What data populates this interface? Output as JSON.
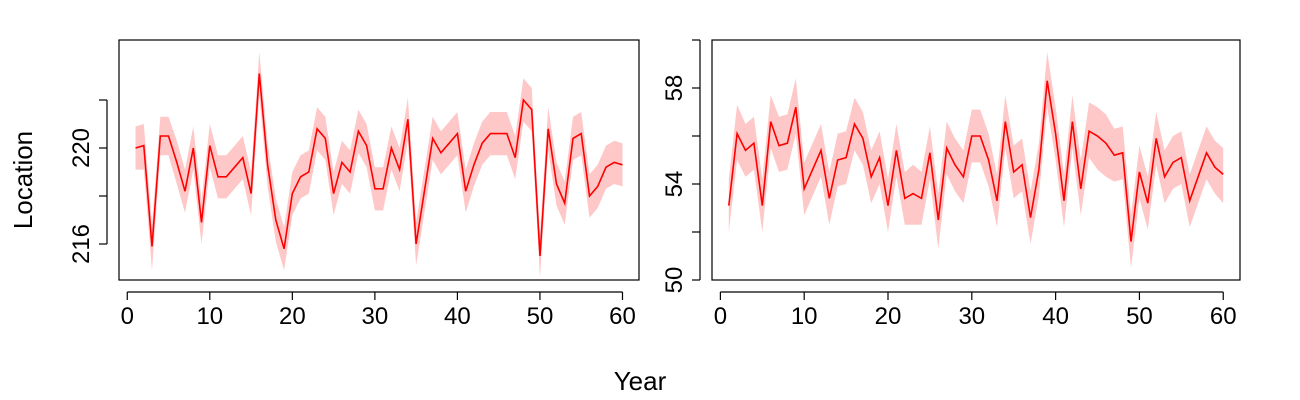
{
  "figure": {
    "ylabel": "Location",
    "xlabel": "Year",
    "colors": {
      "line": "#FF0000",
      "band": "#FFC8C8",
      "axis": "#000000"
    }
  },
  "chart_data": [
    {
      "type": "line",
      "title": "",
      "xlabel": "Year",
      "ylabel": "Location",
      "xlim": [
        -1,
        62
      ],
      "ylim": [
        214.5,
        224.5
      ],
      "x_ticks": [
        0,
        10,
        20,
        30,
        40,
        50,
        60
      ],
      "y_ticks_labeled": [
        216,
        220
      ],
      "y_ticks_minor": [
        218,
        222
      ],
      "grid": false,
      "legend": "none",
      "series": [
        {
          "x": [
            1,
            2,
            3,
            4,
            5,
            6,
            7,
            8,
            9,
            10,
            11,
            12,
            13,
            14,
            15,
            16,
            17,
            18,
            19,
            20,
            21,
            22,
            23,
            24,
            25,
            26,
            27,
            28,
            29,
            30,
            31,
            32,
            33,
            34,
            35,
            36,
            37,
            38,
            39,
            40,
            41,
            42,
            43,
            44,
            45,
            46,
            47,
            48,
            49,
            50,
            51,
            52,
            53,
            54,
            55,
            56,
            57,
            58,
            59,
            60
          ],
          "y": [
            220.0,
            220.1,
            215.9,
            220.5,
            220.5,
            219.4,
            218.2,
            220.0,
            216.9,
            220.1,
            218.8,
            218.8,
            219.2,
            219.6,
            218.1,
            223.1,
            219.3,
            217.0,
            215.8,
            218.1,
            218.8,
            219.0,
            220.8,
            220.4,
            218.1,
            219.4,
            219.0,
            220.7,
            220.1,
            218.3,
            218.3,
            220.0,
            219.1,
            221.2,
            216.0,
            218.2,
            220.4,
            219.8,
            220.2,
            220.6,
            218.2,
            219.3,
            220.2,
            220.6,
            220.6,
            220.6,
            219.6,
            222.0,
            221.6,
            215.5,
            220.8,
            218.5,
            217.7,
            220.4,
            220.6,
            218.0,
            218.4,
            219.2,
            219.4,
            219.3
          ],
          "lower": [
            219.1,
            219.1,
            214.9,
            219.7,
            219.7,
            218.5,
            217.3,
            219.1,
            216.0,
            219.2,
            217.9,
            217.9,
            218.3,
            218.7,
            217.2,
            222.2,
            218.4,
            216.1,
            214.9,
            217.2,
            217.9,
            218.1,
            219.9,
            219.5,
            217.2,
            218.5,
            218.1,
            219.8,
            219.2,
            217.4,
            217.4,
            219.1,
            218.2,
            220.3,
            215.1,
            217.3,
            219.5,
            218.9,
            219.3,
            219.7,
            217.3,
            218.4,
            219.3,
            219.7,
            219.7,
            219.7,
            218.7,
            221.1,
            220.7,
            214.6,
            219.9,
            217.6,
            216.8,
            219.5,
            219.7,
            217.1,
            217.5,
            218.3,
            218.5,
            218.4
          ],
          "upper": [
            220.9,
            221.0,
            216.8,
            221.3,
            221.3,
            220.3,
            219.1,
            220.9,
            217.8,
            221.0,
            219.7,
            219.7,
            220.1,
            220.5,
            219.0,
            224.0,
            220.2,
            217.9,
            216.7,
            219.0,
            219.7,
            219.9,
            221.7,
            221.3,
            219.0,
            220.3,
            219.9,
            221.6,
            221.0,
            219.2,
            219.2,
            220.9,
            220.0,
            222.1,
            216.9,
            219.1,
            221.3,
            220.7,
            221.1,
            221.5,
            219.1,
            220.2,
            221.1,
            221.5,
            221.5,
            221.5,
            220.5,
            222.9,
            222.5,
            216.4,
            221.7,
            219.4,
            218.6,
            221.3,
            221.5,
            218.9,
            219.3,
            220.1,
            220.3,
            220.2
          ]
        }
      ]
    },
    {
      "type": "line",
      "title": "",
      "xlabel": "Year",
      "ylabel": "",
      "xlim": [
        -1,
        62
      ],
      "ylim": [
        50,
        60
      ],
      "x_ticks": [
        0,
        10,
        20,
        30,
        40,
        50,
        60
      ],
      "y_ticks_labeled": [
        50,
        54,
        58
      ],
      "y_ticks_minor": [
        52,
        56,
        60
      ],
      "grid": false,
      "legend": "none",
      "series": [
        {
          "x": [
            1,
            2,
            3,
            4,
            5,
            6,
            7,
            8,
            9,
            10,
            11,
            12,
            13,
            14,
            15,
            16,
            17,
            18,
            19,
            20,
            21,
            22,
            23,
            24,
            25,
            26,
            27,
            28,
            29,
            30,
            31,
            32,
            33,
            34,
            35,
            36,
            37,
            38,
            39,
            40,
            41,
            42,
            43,
            44,
            45,
            46,
            47,
            48,
            49,
            50,
            51,
            52,
            53,
            54,
            55,
            56,
            57,
            58,
            59,
            60
          ],
          "y": [
            53.1,
            56.1,
            55.4,
            55.7,
            53.1,
            56.6,
            55.6,
            55.7,
            57.2,
            53.8,
            54.6,
            55.4,
            53.4,
            55.0,
            55.1,
            56.5,
            55.9,
            54.3,
            55.1,
            53.1,
            55.4,
            53.4,
            53.6,
            53.4,
            55.3,
            52.5,
            55.5,
            54.8,
            54.3,
            56.0,
            56.0,
            55.0,
            53.3,
            56.6,
            54.5,
            54.8,
            52.6,
            54.6,
            58.3,
            56.1,
            53.3,
            56.6,
            53.8,
            56.2,
            56.0,
            55.7,
            55.2,
            55.3,
            51.6,
            54.5,
            53.2,
            55.9,
            54.3,
            54.9,
            55.1,
            53.3,
            54.3,
            55.3,
            54.7,
            54.4
          ],
          "lower": [
            52.0,
            55.0,
            54.3,
            54.6,
            52.0,
            55.5,
            54.5,
            54.6,
            56.1,
            52.7,
            53.5,
            54.3,
            52.3,
            53.9,
            54.0,
            55.4,
            54.8,
            53.2,
            54.0,
            52.0,
            54.3,
            52.3,
            52.3,
            52.3,
            54.2,
            51.3,
            54.4,
            53.7,
            53.2,
            54.9,
            54.9,
            53.9,
            52.2,
            55.5,
            53.4,
            53.7,
            51.5,
            53.5,
            57.2,
            55.0,
            52.2,
            55.5,
            52.7,
            55.1,
            54.6,
            54.3,
            54.1,
            54.2,
            50.5,
            53.4,
            52.1,
            54.8,
            53.2,
            53.8,
            54.0,
            52.2,
            53.2,
            54.2,
            53.6,
            53.2
          ],
          "upper": [
            54.2,
            57.3,
            56.5,
            56.8,
            54.2,
            57.7,
            56.8,
            56.9,
            58.4,
            54.9,
            55.7,
            56.5,
            54.5,
            56.1,
            56.2,
            57.6,
            57.0,
            55.4,
            56.2,
            54.2,
            56.5,
            54.5,
            54.8,
            54.5,
            56.4,
            53.6,
            56.6,
            55.9,
            55.4,
            57.1,
            57.1,
            56.1,
            54.4,
            57.7,
            55.6,
            55.9,
            53.7,
            55.7,
            59.5,
            57.2,
            54.4,
            57.7,
            55.0,
            57.4,
            57.2,
            56.9,
            56.3,
            56.4,
            52.7,
            55.6,
            54.3,
            57.0,
            55.4,
            56.0,
            56.2,
            54.4,
            55.4,
            56.4,
            55.8,
            55.5
          ]
        }
      ]
    }
  ]
}
